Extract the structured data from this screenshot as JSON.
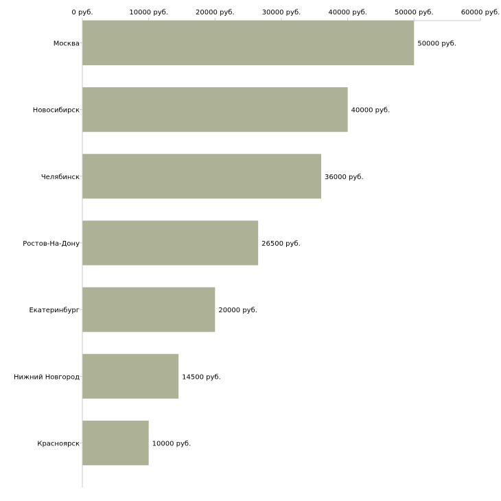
{
  "chart_data": {
    "type": "bar",
    "orientation": "horizontal",
    "title": "",
    "xlabel": "",
    "ylabel": "",
    "xlim": [
      0,
      60000
    ],
    "x_ticks": [
      0,
      10000,
      20000,
      30000,
      40000,
      50000,
      60000
    ],
    "x_tick_labels": [
      "0 руб.",
      "10000 руб.",
      "20000 руб.",
      "30000 руб.",
      "40000 руб.",
      "50000 руб.",
      "60000 руб."
    ],
    "x_axis_position": "top",
    "grid": false,
    "categories": [
      "Москва",
      "Новосибирск",
      "Челябинск",
      "Ростов-На-Дону",
      "Екатеринбург",
      "Нижний Новгород",
      "Красноярск"
    ],
    "values": [
      50000,
      40000,
      36000,
      26500,
      20000,
      14500,
      10000
    ],
    "data_labels": [
      "50000 руб.",
      "40000 руб.",
      "36000 руб.",
      "26500 руб.",
      "20000 руб.",
      "14500 руб.",
      "10000 руб."
    ],
    "bar_color": "#adb296"
  }
}
